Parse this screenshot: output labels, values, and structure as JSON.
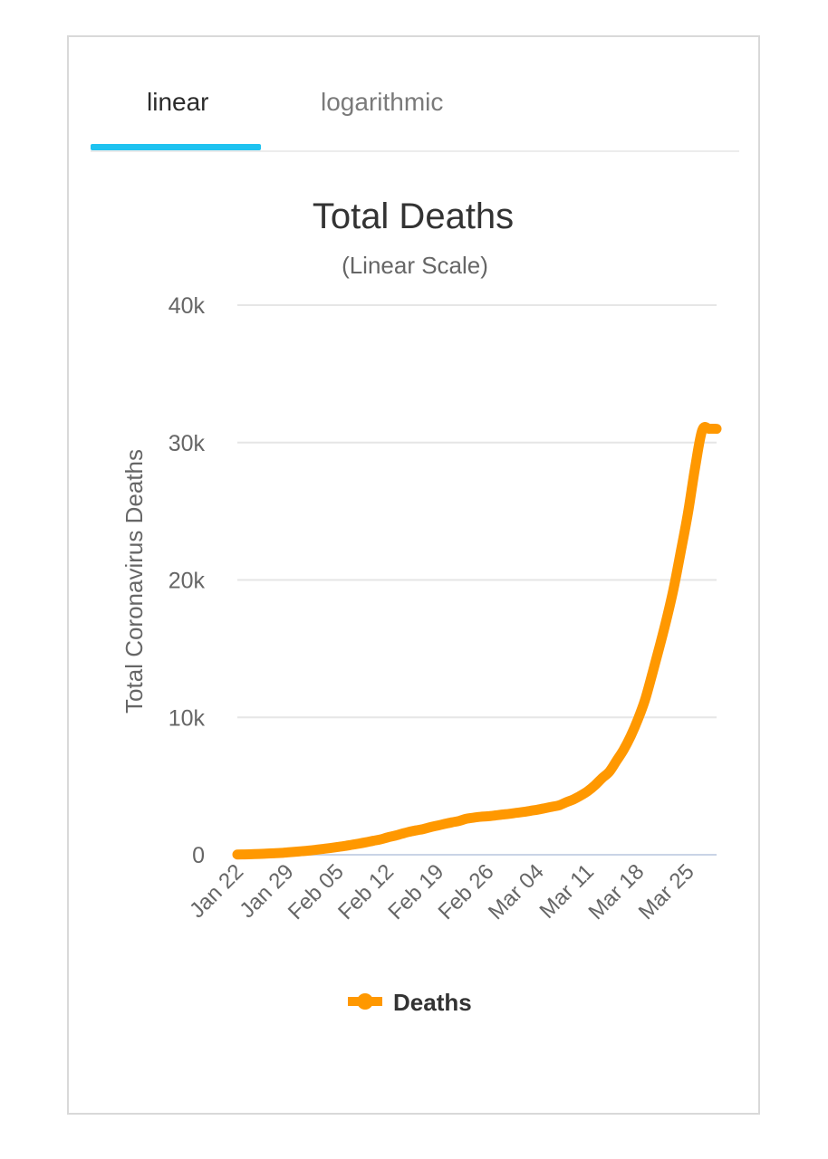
{
  "tabs": [
    {
      "label": "linear",
      "active": true
    },
    {
      "label": "logarithmic",
      "active": false
    }
  ],
  "colors": {
    "accent": "#1ec2f0",
    "series": "#ff9800",
    "grid": "#e6e6e6"
  },
  "chart_data": {
    "type": "line",
    "title": "Total Deaths",
    "subtitle": "(Linear Scale)",
    "ylabel": "Total Coronavirus Deaths",
    "xlabel": "",
    "ylim": [
      0,
      40000
    ],
    "yticks": [
      0,
      10000,
      20000,
      30000,
      40000
    ],
    "ytick_labels": [
      "0",
      "10k",
      "20k",
      "30k",
      "40k"
    ],
    "xticks": [
      "Jan 22",
      "Jan 29",
      "Feb 05",
      "Feb 12",
      "Feb 19",
      "Feb 26",
      "Mar 04",
      "Mar 11",
      "Mar 18",
      "Mar 25"
    ],
    "grid": true,
    "legend": {
      "position": "bottom",
      "entries": [
        "Deaths"
      ]
    },
    "series": [
      {
        "name": "Deaths",
        "color": "#ff9800",
        "x": [
          "Jan 22",
          "Jan 23",
          "Jan 24",
          "Jan 25",
          "Jan 26",
          "Jan 27",
          "Jan 28",
          "Jan 29",
          "Jan 30",
          "Jan 31",
          "Feb 01",
          "Feb 02",
          "Feb 03",
          "Feb 04",
          "Feb 05",
          "Feb 06",
          "Feb 07",
          "Feb 08",
          "Feb 09",
          "Feb 10",
          "Feb 11",
          "Feb 12",
          "Feb 13",
          "Feb 14",
          "Feb 15",
          "Feb 16",
          "Feb 17",
          "Feb 18",
          "Feb 19",
          "Feb 20",
          "Feb 21",
          "Feb 22",
          "Feb 23",
          "Feb 24",
          "Feb 25",
          "Feb 26",
          "Feb 27",
          "Feb 28",
          "Feb 29",
          "Mar 01",
          "Mar 02",
          "Mar 03",
          "Mar 04",
          "Mar 05",
          "Mar 06",
          "Mar 07",
          "Mar 08",
          "Mar 09",
          "Mar 10",
          "Mar 11",
          "Mar 12",
          "Mar 13",
          "Mar 14",
          "Mar 15",
          "Mar 16",
          "Mar 17",
          "Mar 18",
          "Mar 19",
          "Mar 20",
          "Mar 21",
          "Mar 22",
          "Mar 23",
          "Mar 24",
          "Mar 25",
          "Mar 26",
          "Mar 27",
          "Mar 28",
          "Mar 29"
        ],
        "values": [
          17,
          25,
          41,
          56,
          80,
          106,
          132,
          170,
          213,
          259,
          304,
          362,
          426,
          492,
          565,
          638,
          724,
          813,
          910,
          1018,
          1115,
          1261,
          1383,
          1526,
          1669,
          1775,
          1873,
          2009,
          2126,
          2247,
          2360,
          2460,
          2618,
          2699,
          2763,
          2800,
          2858,
          2923,
          2977,
          3050,
          3117,
          3202,
          3285,
          3387,
          3494,
          3599,
          3827,
          4030,
          4306,
          4633,
          5062,
          5580,
          6040,
          6830,
          7636,
          8641,
          9850,
          11280,
          13147,
          15094,
          17128,
          19392,
          22081,
          24869,
          28184,
          30906,
          31000,
          31000
        ]
      }
    ]
  }
}
